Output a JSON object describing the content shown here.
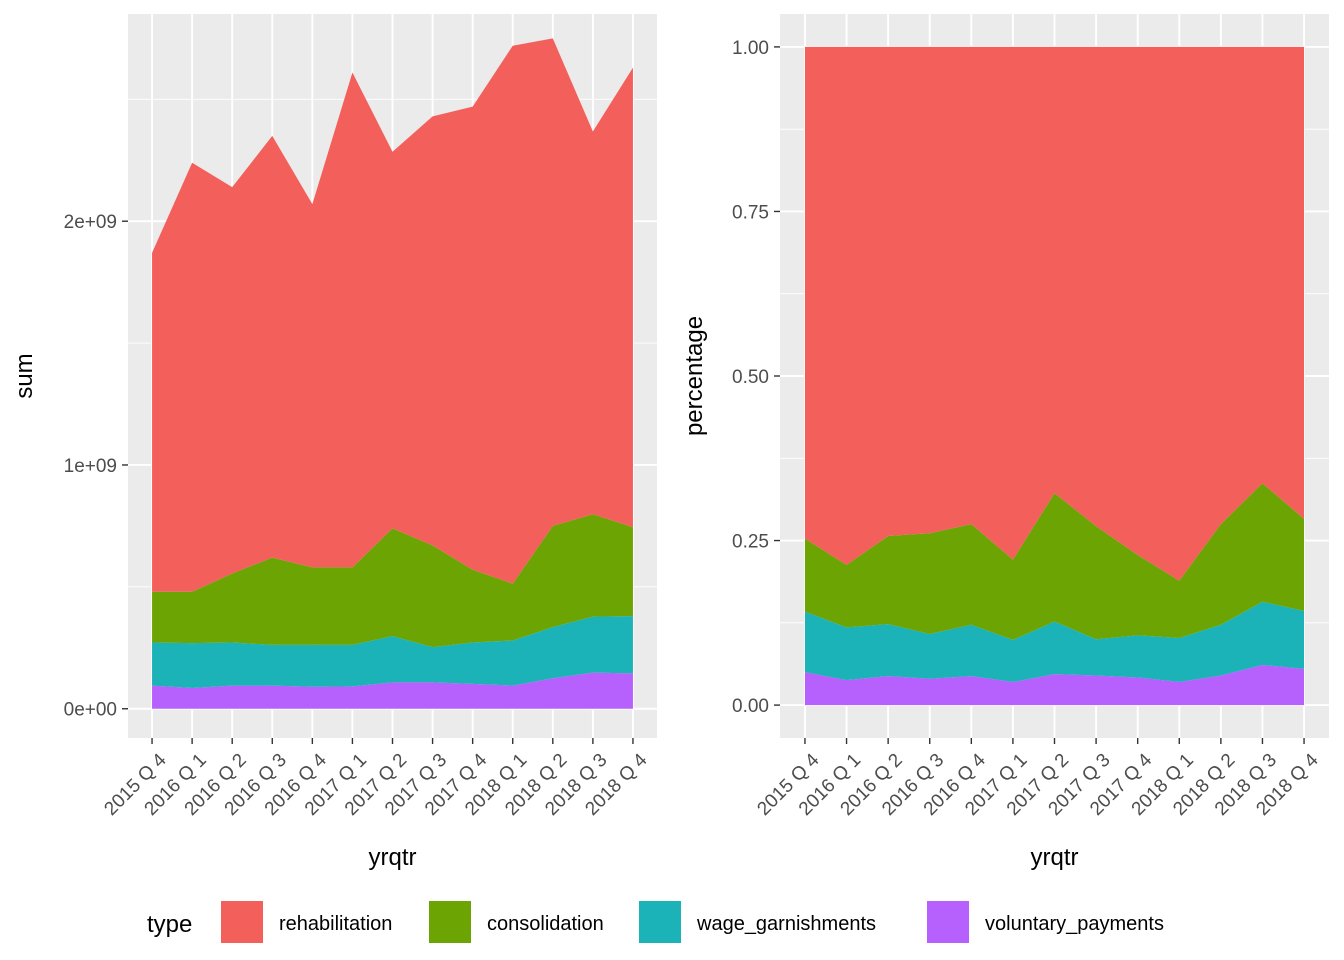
{
  "chart_data": [
    {
      "type": "area",
      "stacked": true,
      "xlabel": "yrqtr",
      "ylabel": "sum",
      "categories": [
        "2015 Q 4",
        "2016 Q 1",
        "2016 Q 2",
        "2016 Q 3",
        "2016 Q 4",
        "2017 Q 1",
        "2017 Q 2",
        "2017 Q 3",
        "2017 Q 4",
        "2018 Q 1",
        "2018 Q 2",
        "2018 Q 3",
        "2018 Q 4"
      ],
      "ylim": [
        -120000000,
        2850000000
      ],
      "yticks": [
        0,
        1000000000,
        2000000000
      ],
      "ytick_labels": [
        "0e+00",
        "1e+09",
        "2e+09"
      ],
      "series": [
        {
          "name": "voluntary_payments",
          "values": [
            95000000,
            85000000,
            95000000,
            95000000,
            90000000,
            92000000,
            108000000,
            108000000,
            102000000,
            95000000,
            125000000,
            148000000,
            145000000
          ]
        },
        {
          "name": "wage_garnishments",
          "values": [
            177000000,
            184000000,
            177000000,
            167000000,
            172000000,
            170000000,
            190000000,
            145000000,
            170000000,
            185000000,
            210000000,
            230000000,
            235000000
          ]
        },
        {
          "name": "consolidation",
          "values": [
            208000000,
            211000000,
            283000000,
            358000000,
            318000000,
            318000000,
            442000000,
            417000000,
            298000000,
            233000000,
            415000000,
            420000000,
            365000000
          ]
        },
        {
          "name": "rehabilitation",
          "values": [
            1390000000,
            1760000000,
            1585000000,
            1730000000,
            1490000000,
            2030000000,
            1545000000,
            1760000000,
            1900000000,
            2207000000,
            2000000000,
            1570000000,
            1885000000
          ]
        }
      ],
      "grid": true
    },
    {
      "type": "area",
      "stacked": true,
      "xlabel": "yrqtr",
      "ylabel": "percentage",
      "categories": [
        "2015 Q 4",
        "2016 Q 1",
        "2016 Q 2",
        "2016 Q 3",
        "2016 Q 4",
        "2017 Q 1",
        "2017 Q 2",
        "2017 Q 3",
        "2017 Q 4",
        "2018 Q 1",
        "2018 Q 2",
        "2018 Q 3",
        "2018 Q 4"
      ],
      "ylim": [
        -0.05,
        1.05
      ],
      "yticks": [
        0,
        0.25,
        0.5,
        0.75,
        1
      ],
      "ytick_labels": [
        "0.00",
        "0.25",
        "0.50",
        "0.75",
        "1.00"
      ],
      "series": [
        {
          "name": "voluntary_payments",
          "values": [
            0.05,
            0.038,
            0.044,
            0.04,
            0.044,
            0.035,
            0.047,
            0.045,
            0.042,
            0.035,
            0.045,
            0.061,
            0.055
          ]
        },
        {
          "name": "wage_garnishments",
          "values": [
            0.092,
            0.08,
            0.079,
            0.068,
            0.078,
            0.064,
            0.08,
            0.055,
            0.064,
            0.067,
            0.077,
            0.096,
            0.088
          ]
        },
        {
          "name": "consolidation",
          "values": [
            0.111,
            0.095,
            0.134,
            0.153,
            0.153,
            0.122,
            0.195,
            0.172,
            0.122,
            0.087,
            0.153,
            0.18,
            0.14
          ]
        },
        {
          "name": "rehabilitation",
          "values": [
            0.747,
            0.787,
            0.743,
            0.739,
            0.725,
            0.779,
            0.678,
            0.728,
            0.772,
            0.811,
            0.725,
            0.663,
            0.717
          ]
        }
      ],
      "grid": true
    }
  ],
  "legend": {
    "title": "type",
    "position": "bottom",
    "items": [
      {
        "label": "rehabilitation",
        "color": "#f3605b"
      },
      {
        "label": "consolidation",
        "color": "#6ca404"
      },
      {
        "label": "wage_garnishments",
        "color": "#1bb3b7"
      },
      {
        "label": "voluntary_payments",
        "color": "#b660fd"
      }
    ]
  },
  "colors": {
    "rehabilitation": "#f3605b",
    "consolidation": "#6ca404",
    "wage_garnishments": "#1bb3b7",
    "voluntary_payments": "#b660fd",
    "panel_background": "#ebebeb",
    "grid": "#ffffff"
  }
}
